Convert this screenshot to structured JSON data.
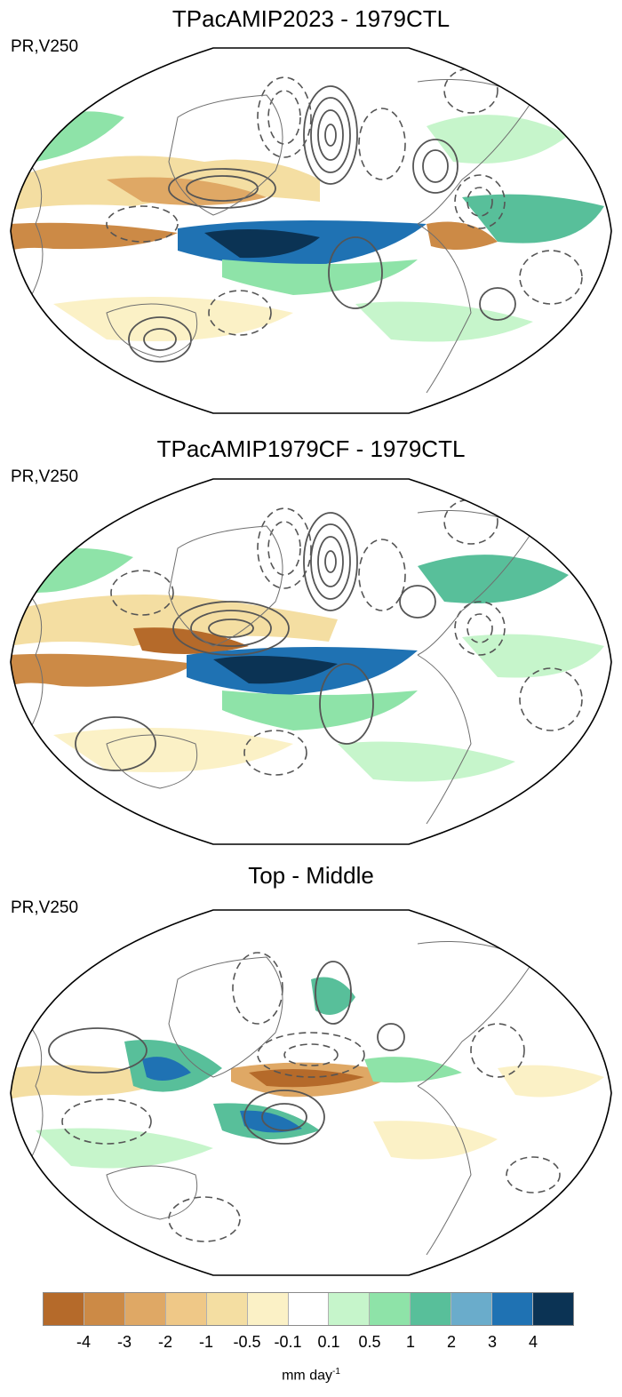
{
  "panels": [
    {
      "title": "TPacAMIP2023 - 1979CTL",
      "label": "PR,V250"
    },
    {
      "title": "TPacAMIP1979CF - 1979CTL",
      "label": "PR,V250"
    },
    {
      "title": "Top - Middle",
      "label": "PR,V250"
    }
  ],
  "colorbar": {
    "colors": [
      "#b56a2a",
      "#cc8a46",
      "#dfa865",
      "#efc887",
      "#f4dea2",
      "#fbf1c6",
      "#ffffff",
      "#c6f5cb",
      "#8ee3a8",
      "#58bf9a",
      "#6aaccb",
      "#1f72b3",
      "#0b3354"
    ],
    "tick_labels": [
      "-4",
      "-3",
      "-2",
      "-1",
      "-0.5",
      "-0.1",
      "0.1",
      "0.5",
      "1",
      "2",
      "3",
      "4"
    ],
    "units_text": "mm day",
    "units_exp": "-1"
  }
}
